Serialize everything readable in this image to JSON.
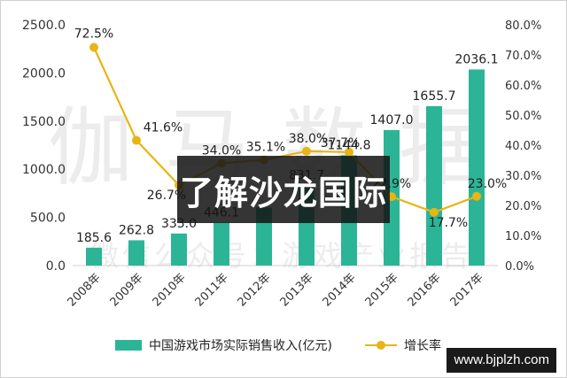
{
  "chart_data": {
    "type": "bar+line",
    "categories": [
      "2008年",
      "2009年",
      "2010年",
      "2011年",
      "2012年",
      "2013年",
      "2014年",
      "2015年",
      "2016年",
      "2017年"
    ],
    "series": [
      {
        "name": "中国游戏市场实际销售收入(亿元)",
        "axis": "left",
        "values": [
          185.6,
          262.8,
          333.0,
          446.1,
          602.8,
          831.7,
          1144.8,
          1407.0,
          1655.7,
          2036.1
        ],
        "labels": [
          "185.6",
          "262.8",
          "333.0",
          "446.1",
          "",
          "831.7",
          "1144.8",
          "1407.0",
          "1655.7",
          "2036.1"
        ],
        "color": "#2bb596"
      },
      {
        "name": "增长率",
        "axis": "right",
        "values": [
          72.5,
          41.6,
          26.7,
          34.0,
          35.1,
          38.0,
          37.7,
          22.9,
          17.7,
          23.0
        ],
        "labels": [
          "72.5%",
          "41.6%",
          "26.7%",
          "34.0%",
          "35.1%",
          "38.0%",
          "37.7%",
          "22.9%",
          "17.7%",
          "23.0%"
        ],
        "color": "#e8b416"
      }
    ],
    "left_axis": {
      "ticks": [
        "0.0",
        "500.0",
        "1000.0",
        "1500.0",
        "2000.0",
        "2500.0"
      ],
      "ylim": [
        0,
        2500
      ]
    },
    "right_axis": {
      "ticks": [
        "0.0%",
        "10.0%",
        "20.0%",
        "30.0%",
        "40.0%",
        "50.0%",
        "60.0%",
        "70.0%",
        "80.0%"
      ],
      "ylim": [
        0,
        80
      ]
    },
    "legend_position": "bottom",
    "grid": false
  },
  "watermark": {
    "big": "伽马数据",
    "small": "微信公众号：游戏产业报告"
  },
  "overlay": {
    "title": "了解沙龙国际"
  },
  "url_badge": "www.bjplzh.com"
}
